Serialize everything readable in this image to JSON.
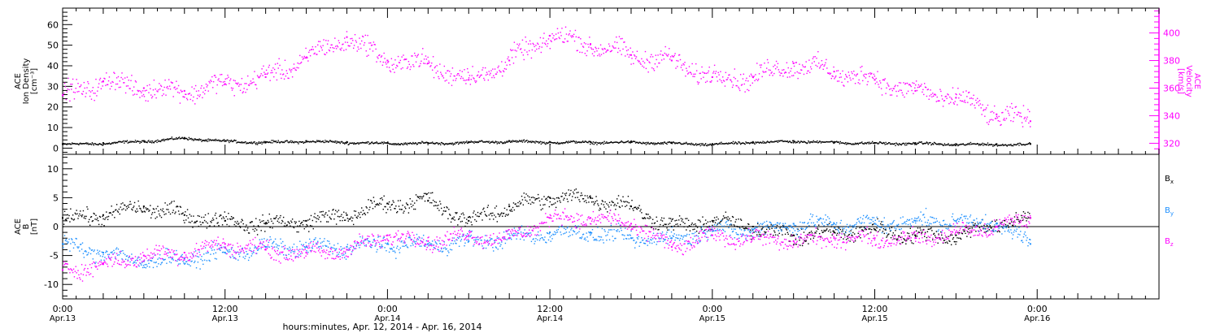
{
  "colors": {
    "black": "#000000",
    "magenta": "#ff00ff",
    "blue": "#1e90ff"
  },
  "chart_data": [
    {
      "type": "scatter",
      "panel": "top",
      "ylabel_lines": [
        "ACE",
        "Ion Density",
        "[cm⁻³]"
      ],
      "y2label_lines": [
        "ACE",
        "Velocity",
        "[km/s]"
      ],
      "ylim": [
        -3,
        68
      ],
      "y_ticks": [
        0,
        10,
        20,
        30,
        40,
        50,
        60
      ],
      "y2lim": [
        312,
        418
      ],
      "y2_ticks": [
        320,
        340,
        360,
        380,
        400
      ],
      "series": [
        {
          "axis": "left",
          "color": "#000000",
          "x": [
            0,
            3,
            6,
            9,
            12,
            15,
            18,
            21,
            24,
            27,
            30,
            33,
            36,
            39,
            42,
            45,
            48,
            51,
            54,
            57,
            60,
            63,
            66,
            69,
            71.5
          ],
          "y": [
            2,
            2.5,
            3.5,
            5,
            3.5,
            3,
            3.5,
            3,
            2.5,
            2.5,
            3,
            3.5,
            3,
            3,
            3,
            2.5,
            2,
            3,
            3.5,
            3,
            2.5,
            2.5,
            2,
            2,
            2
          ]
        },
        {
          "axis": "right",
          "color": "#ff00ff",
          "x": [
            0,
            3,
            6,
            9,
            12,
            15,
            18,
            21,
            24,
            27,
            30,
            33,
            36,
            39,
            42,
            45,
            48,
            51,
            54,
            57,
            60,
            63,
            66,
            69,
            71.5
          ],
          "y": [
            355,
            365,
            360,
            358,
            363,
            368,
            382,
            397,
            380,
            378,
            366,
            380,
            398,
            392,
            384,
            380,
            368,
            368,
            378,
            372,
            366,
            358,
            353,
            341,
            336
          ]
        }
      ]
    },
    {
      "type": "scatter",
      "panel": "bottom",
      "ylabel_lines": [
        "ACE",
        "B",
        "[nT]"
      ],
      "ylim": [
        -12.5,
        12.5
      ],
      "y_ticks": [
        -10,
        -5,
        0,
        5,
        10
      ],
      "series": [
        {
          "name": "B",
          "subscript": "x",
          "color": "#000000",
          "x": [
            0,
            3,
            6,
            9,
            12,
            15,
            18,
            21,
            24,
            27,
            30,
            33,
            36,
            39,
            42,
            45,
            48,
            51,
            54,
            57,
            60,
            63,
            66,
            69,
            71.5
          ],
          "y": [
            1.5,
            2,
            3.5,
            2,
            1,
            0.5,
            1,
            2,
            4,
            4.5,
            1,
            3.5,
            5,
            5,
            3.5,
            0,
            1,
            0,
            -1.5,
            -1,
            -0.5,
            -1.5,
            -1.5,
            0.5,
            1.5
          ]
        },
        {
          "name": "B",
          "subscript": "y",
          "color": "#1e90ff",
          "x": [
            0,
            3,
            6,
            9,
            12,
            15,
            18,
            21,
            24,
            27,
            30,
            33,
            36,
            39,
            42,
            45,
            48,
            51,
            54,
            57,
            60,
            63,
            66,
            69,
            71.5
          ],
          "y": [
            -3,
            -4.5,
            -6,
            -5.5,
            -4.5,
            -3.5,
            -3.5,
            -3.5,
            -3,
            -3,
            -2.5,
            -2,
            -1,
            -1,
            -2,
            -2,
            -0.5,
            -0.5,
            0.5,
            0.5,
            0.5,
            1,
            1,
            0.5,
            -3
          ]
        },
        {
          "name": "B",
          "subscript": "z",
          "color": "#ff00ff",
          "x": [
            0,
            3,
            6,
            9,
            12,
            15,
            18,
            21,
            24,
            27,
            30,
            33,
            36,
            39,
            42,
            45,
            48,
            51,
            54,
            57,
            60,
            63,
            66,
            69,
            71.5
          ],
          "y": [
            -7.5,
            -6.5,
            -5,
            -4.5,
            -3,
            -4,
            -4.5,
            -4,
            -1.5,
            -2.5,
            -1.5,
            -2,
            1.5,
            1.5,
            0.5,
            -3.5,
            -1.5,
            -2,
            -2.5,
            -2,
            -2,
            -2,
            -1,
            0,
            1.5
          ]
        }
      ]
    }
  ],
  "x_axis": {
    "xlim": [
      0,
      81
    ],
    "title": "hours:minutes, Apr. 12, 2014 - Apr. 16, 2014",
    "ticks": [
      {
        "x": 0,
        "time": "0:00",
        "date": "Apr.13"
      },
      {
        "x": 12,
        "time": "12:00",
        "date": "Apr.13"
      },
      {
        "x": 24,
        "time": "0:00",
        "date": "Apr.14"
      },
      {
        "x": 36,
        "time": "12:00",
        "date": "Apr.14"
      },
      {
        "x": 48,
        "time": "0:00",
        "date": "Apr.15"
      },
      {
        "x": 60,
        "time": "12:00",
        "date": "Apr.15"
      },
      {
        "x": 72,
        "time": "0:00",
        "date": "Apr.16"
      }
    ]
  }
}
